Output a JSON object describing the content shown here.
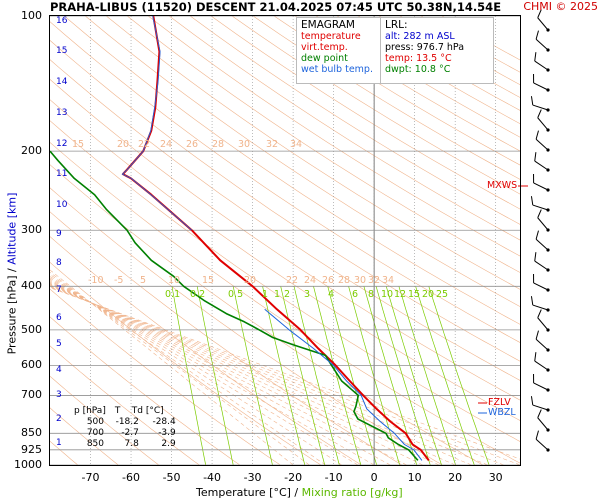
{
  "header": {
    "title": "PRAHA-LIBUS (11520)   DESCENT   21.04.2025 07:45 UTC  50.38N,14.54E",
    "credit": "CHMI © 2025"
  },
  "legend": {
    "title": "EMAGRAM",
    "items": [
      {
        "label": "temperature",
        "color": "#e00000"
      },
      {
        "label": "virt.temp.",
        "color": "#e00000"
      },
      {
        "label": "dew point",
        "color": "#008000"
      },
      {
        "label": "wet bulb temp.",
        "color": "#1e64dc"
      }
    ]
  },
  "lrl": {
    "title": "LRL:",
    "alt": "alt: 282 m ASL",
    "press": "press: 976.7 hPa",
    "temp": "temp: 13.5 °C",
    "dwpt": "dwpt: 10.8 °C"
  },
  "levels_table": {
    "headers": [
      "p [hPa]",
      "T",
      "Td [°C]"
    ],
    "rows": [
      [
        "500",
        "-18.2",
        "-28.4"
      ],
      [
        "700",
        "-2.7",
        "-3.9"
      ],
      [
        "850",
        "7.8",
        "2.9"
      ]
    ]
  },
  "level_labels": {
    "mxws": "MXWS",
    "fzlv": "FZLV",
    "wbzl": "WBZL"
  },
  "axes": {
    "xlabel_main": "Temperature [°C]  /",
    "xlabel_mix": "Mixing ratio [g/kg]",
    "ylabel_main": "Pressure [hPa]  /",
    "ylabel_alt": "Altitude [km]"
  },
  "colors": {
    "temp": "#e00000",
    "dew": "#008000",
    "wetbulb": "#1e64dc",
    "mix": "#7ccc00",
    "adiabat": "#f0b48c",
    "grid": "#909090",
    "km": "#0000cc"
  },
  "chart_data": {
    "type": "line",
    "title": "PRAHA-LIBUS (11520) DESCENT 21.04.2025 07:45 UTC 50.38N,14.54E",
    "xlabel": "Temperature [°C] / Mixing ratio [g/kg]",
    "ylabel": "Pressure [hPa] / Altitude [km]",
    "x_ticks": [
      -70,
      -60,
      -50,
      -40,
      -30,
      -20,
      -10,
      0,
      10,
      20,
      30
    ],
    "y_ticks": [
      100,
      200,
      300,
      400,
      500,
      600,
      700,
      850,
      925,
      1000
    ],
    "y_scale": "log",
    "xlim": [
      -80,
      36
    ],
    "ylim": [
      1000,
      100
    ],
    "altitude_ticks_km": [
      1,
      2,
      3,
      4,
      5,
      6,
      7,
      8,
      9,
      10,
      11,
      12,
      13,
      14,
      15,
      16
    ],
    "dry_adiabat_labels": [
      15,
      20,
      22,
      24,
      26,
      28,
      30,
      32,
      34
    ],
    "moist_adiabat_labels": [
      -10,
      -5,
      5,
      10,
      15,
      20,
      22,
      24,
      26,
      28,
      30,
      32,
      34
    ],
    "mixing_ratio_labels": [
      "0.1",
      "0.2",
      "0.5",
      "1",
      "1",
      "2",
      "3",
      "4",
      "6",
      "8",
      "10",
      "12",
      "15",
      "20",
      "25"
    ],
    "series": [
      {
        "name": "temperature",
        "p": [
          976.7,
          925,
          900,
          850,
          800,
          750,
          700,
          650,
          600,
          550,
          500,
          450,
          400,
          350,
          300,
          250,
          230,
          225,
          220,
          200,
          180,
          160,
          140,
          120,
          100
        ],
        "t": [
          13.5,
          11.5,
          9.5,
          7.8,
          4.0,
          0.6,
          -2.7,
          -6.0,
          -9.5,
          -13.8,
          -18.2,
          -24.0,
          -30.0,
          -38.0,
          -45.0,
          -55.0,
          -60.0,
          -62.0,
          -61.0,
          -57.0,
          -55.0,
          -54.0,
          -53.5,
          -53.0,
          -54.5
        ]
      },
      {
        "name": "dew point",
        "p": [
          976.7,
          925,
          900,
          870,
          850,
          820,
          790,
          760,
          740,
          700,
          680,
          650,
          600,
          570,
          540,
          520,
          500,
          480,
          460,
          430,
          400,
          380,
          350,
          320,
          300,
          270,
          250,
          230,
          210,
          200
        ],
        "t": [
          10.8,
          8.5,
          6.0,
          3.5,
          2.9,
          -0.5,
          -4.0,
          -5.0,
          -4.5,
          -3.9,
          -5.5,
          -8.0,
          -10.5,
          -12.0,
          -20.0,
          -25.0,
          -28.4,
          -32.0,
          -36.5,
          -42.0,
          -47.0,
          -49.5,
          -55.0,
          -59.0,
          -61.0,
          -66.0,
          -69.0,
          -74.0,
          -78.0,
          -80.0
        ]
      },
      {
        "name": "wet bulb temp.",
        "p": [
          976.7,
          925,
          900,
          850,
          800,
          750,
          700,
          650,
          600,
          550,
          500,
          450
        ],
        "t": [
          11.8,
          9.8,
          7.5,
          5.0,
          1.5,
          -1.8,
          -3.2,
          -6.8,
          -10.0,
          -15.0,
          -21.0,
          -27.0
        ]
      }
    ]
  }
}
